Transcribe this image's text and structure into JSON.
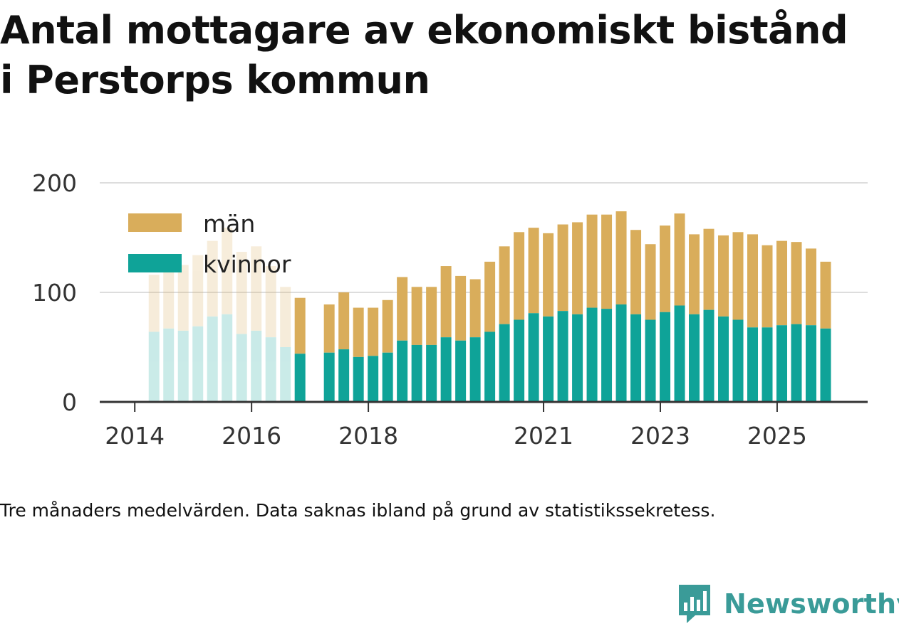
{
  "title_lines": [
    "Antal mottagare av ekonomiskt bistånd",
    "i Perstorps kommun"
  ],
  "caption": "Tre månaders medelvärden. Data saknas ibland på grund av statistikssekretess.",
  "brand": {
    "name": "Newsworthy",
    "icon": "bar-chart-speech-bubble-icon"
  },
  "colors": {
    "kvinnor": "#0fa398",
    "man": "#d9ad5b",
    "grid": "#dddddd",
    "axis": "#333333"
  },
  "chart_data": {
    "type": "bar",
    "stacked": true,
    "title": "Antal mottagare av ekonomiskt bistånd i Perstorps kommun",
    "xlabel": "",
    "ylabel": "",
    "ylim": [
      0,
      200
    ],
    "yticks": [
      "0",
      "100",
      "200"
    ],
    "xticks": [
      {
        "label": "2014",
        "x": 2014.0
      },
      {
        "label": "2016",
        "x": 2016.0
      },
      {
        "label": "2018",
        "x": 2018.0
      },
      {
        "label": "2021",
        "x": 2021.0
      },
      {
        "label": "2023",
        "x": 2023.0
      },
      {
        "label": "2025",
        "x": 2025.0
      }
    ],
    "xlim": [
      2013.4,
      2026.55
    ],
    "legend": {
      "position": "top-left",
      "entries": [
        "män",
        "kvinnor"
      ]
    },
    "x": [
      2014.33,
      2014.58,
      2014.83,
      2015.08,
      2015.33,
      2015.58,
      2015.83,
      2016.08,
      2016.33,
      2016.58,
      2016.83,
      2017.33,
      2017.58,
      2017.83,
      2018.08,
      2018.33,
      2018.58,
      2018.83,
      2019.08,
      2019.33,
      2019.58,
      2019.83,
      2020.08,
      2020.33,
      2020.58,
      2020.83,
      2021.08,
      2021.33,
      2021.58,
      2021.83,
      2022.08,
      2022.33,
      2022.58,
      2022.83,
      2023.08,
      2023.33,
      2023.58,
      2023.83,
      2024.08,
      2024.33,
      2024.58,
      2024.83,
      2025.08,
      2025.33,
      2025.58,
      2025.83
    ],
    "series": [
      {
        "name": "kvinnor",
        "values": [
          64,
          67,
          65,
          69,
          78,
          80,
          62,
          65,
          59,
          50,
          44,
          45,
          48,
          41,
          42,
          45,
          56,
          52,
          52,
          59,
          56,
          59,
          64,
          71,
          75,
          81,
          78,
          83,
          80,
          86,
          85,
          89,
          80,
          75,
          82,
          88,
          80,
          84,
          78,
          75,
          68,
          68,
          70,
          71,
          70,
          67
        ]
      },
      {
        "name": "män",
        "values": [
          52,
          52,
          60,
          65,
          69,
          79,
          75,
          77,
          65,
          55,
          51,
          44,
          52,
          45,
          44,
          48,
          58,
          53,
          53,
          65,
          59,
          53,
          64,
          71,
          80,
          78,
          76,
          79,
          84,
          85,
          86,
          85,
          77,
          69,
          79,
          84,
          73,
          74,
          74,
          80,
          85,
          75,
          77,
          75,
          70,
          61
        ]
      }
    ],
    "highlight_from": "2016.83",
    "highlight_to": "2025.83"
  }
}
